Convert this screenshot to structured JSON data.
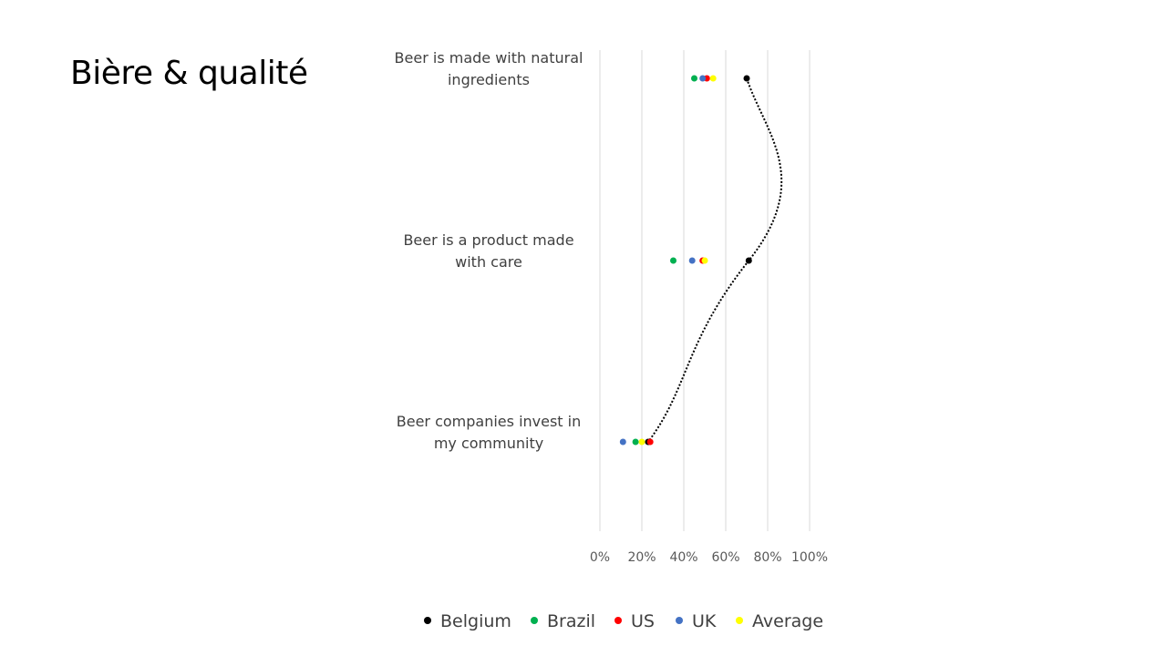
{
  "slide": {
    "title": "Bière & qualité"
  },
  "colors": {
    "Belgium": "#000000",
    "Brazil": "#00b050",
    "US": "#ff0000",
    "UK": "#4472c4",
    "Average": "#ffff00",
    "gridline": "#d9d9d9",
    "trendline": "#000000"
  },
  "chart_data": {
    "type": "scatter",
    "title": "",
    "xlabel": "",
    "ylabel": "",
    "xlim": [
      0,
      1
    ],
    "x_ticks": [
      "0%",
      "20%",
      "40%",
      "60%",
      "80%",
      "100%"
    ],
    "grid": "vertical",
    "legend_position": "bottom",
    "categories": [
      "Beer is made with natural ingredients",
      "Beer is a product made with care",
      "Beer companies invest in my community"
    ],
    "series": [
      {
        "name": "Belgium",
        "values": [
          0.7,
          0.71,
          0.23
        ]
      },
      {
        "name": "Brazil",
        "values": [
          0.45,
          0.35,
          0.17
        ]
      },
      {
        "name": "US",
        "values": [
          0.51,
          0.49,
          0.24
        ]
      },
      {
        "name": "UK",
        "values": [
          0.49,
          0.44,
          0.11
        ]
      },
      {
        "name": "Average",
        "values": [
          0.54,
          0.5,
          0.2
        ]
      }
    ],
    "trendline": {
      "series": "Belgium",
      "style": "dotted"
    },
    "legend": [
      "Belgium",
      "Brazil",
      "US",
      "UK",
      "Average"
    ]
  }
}
